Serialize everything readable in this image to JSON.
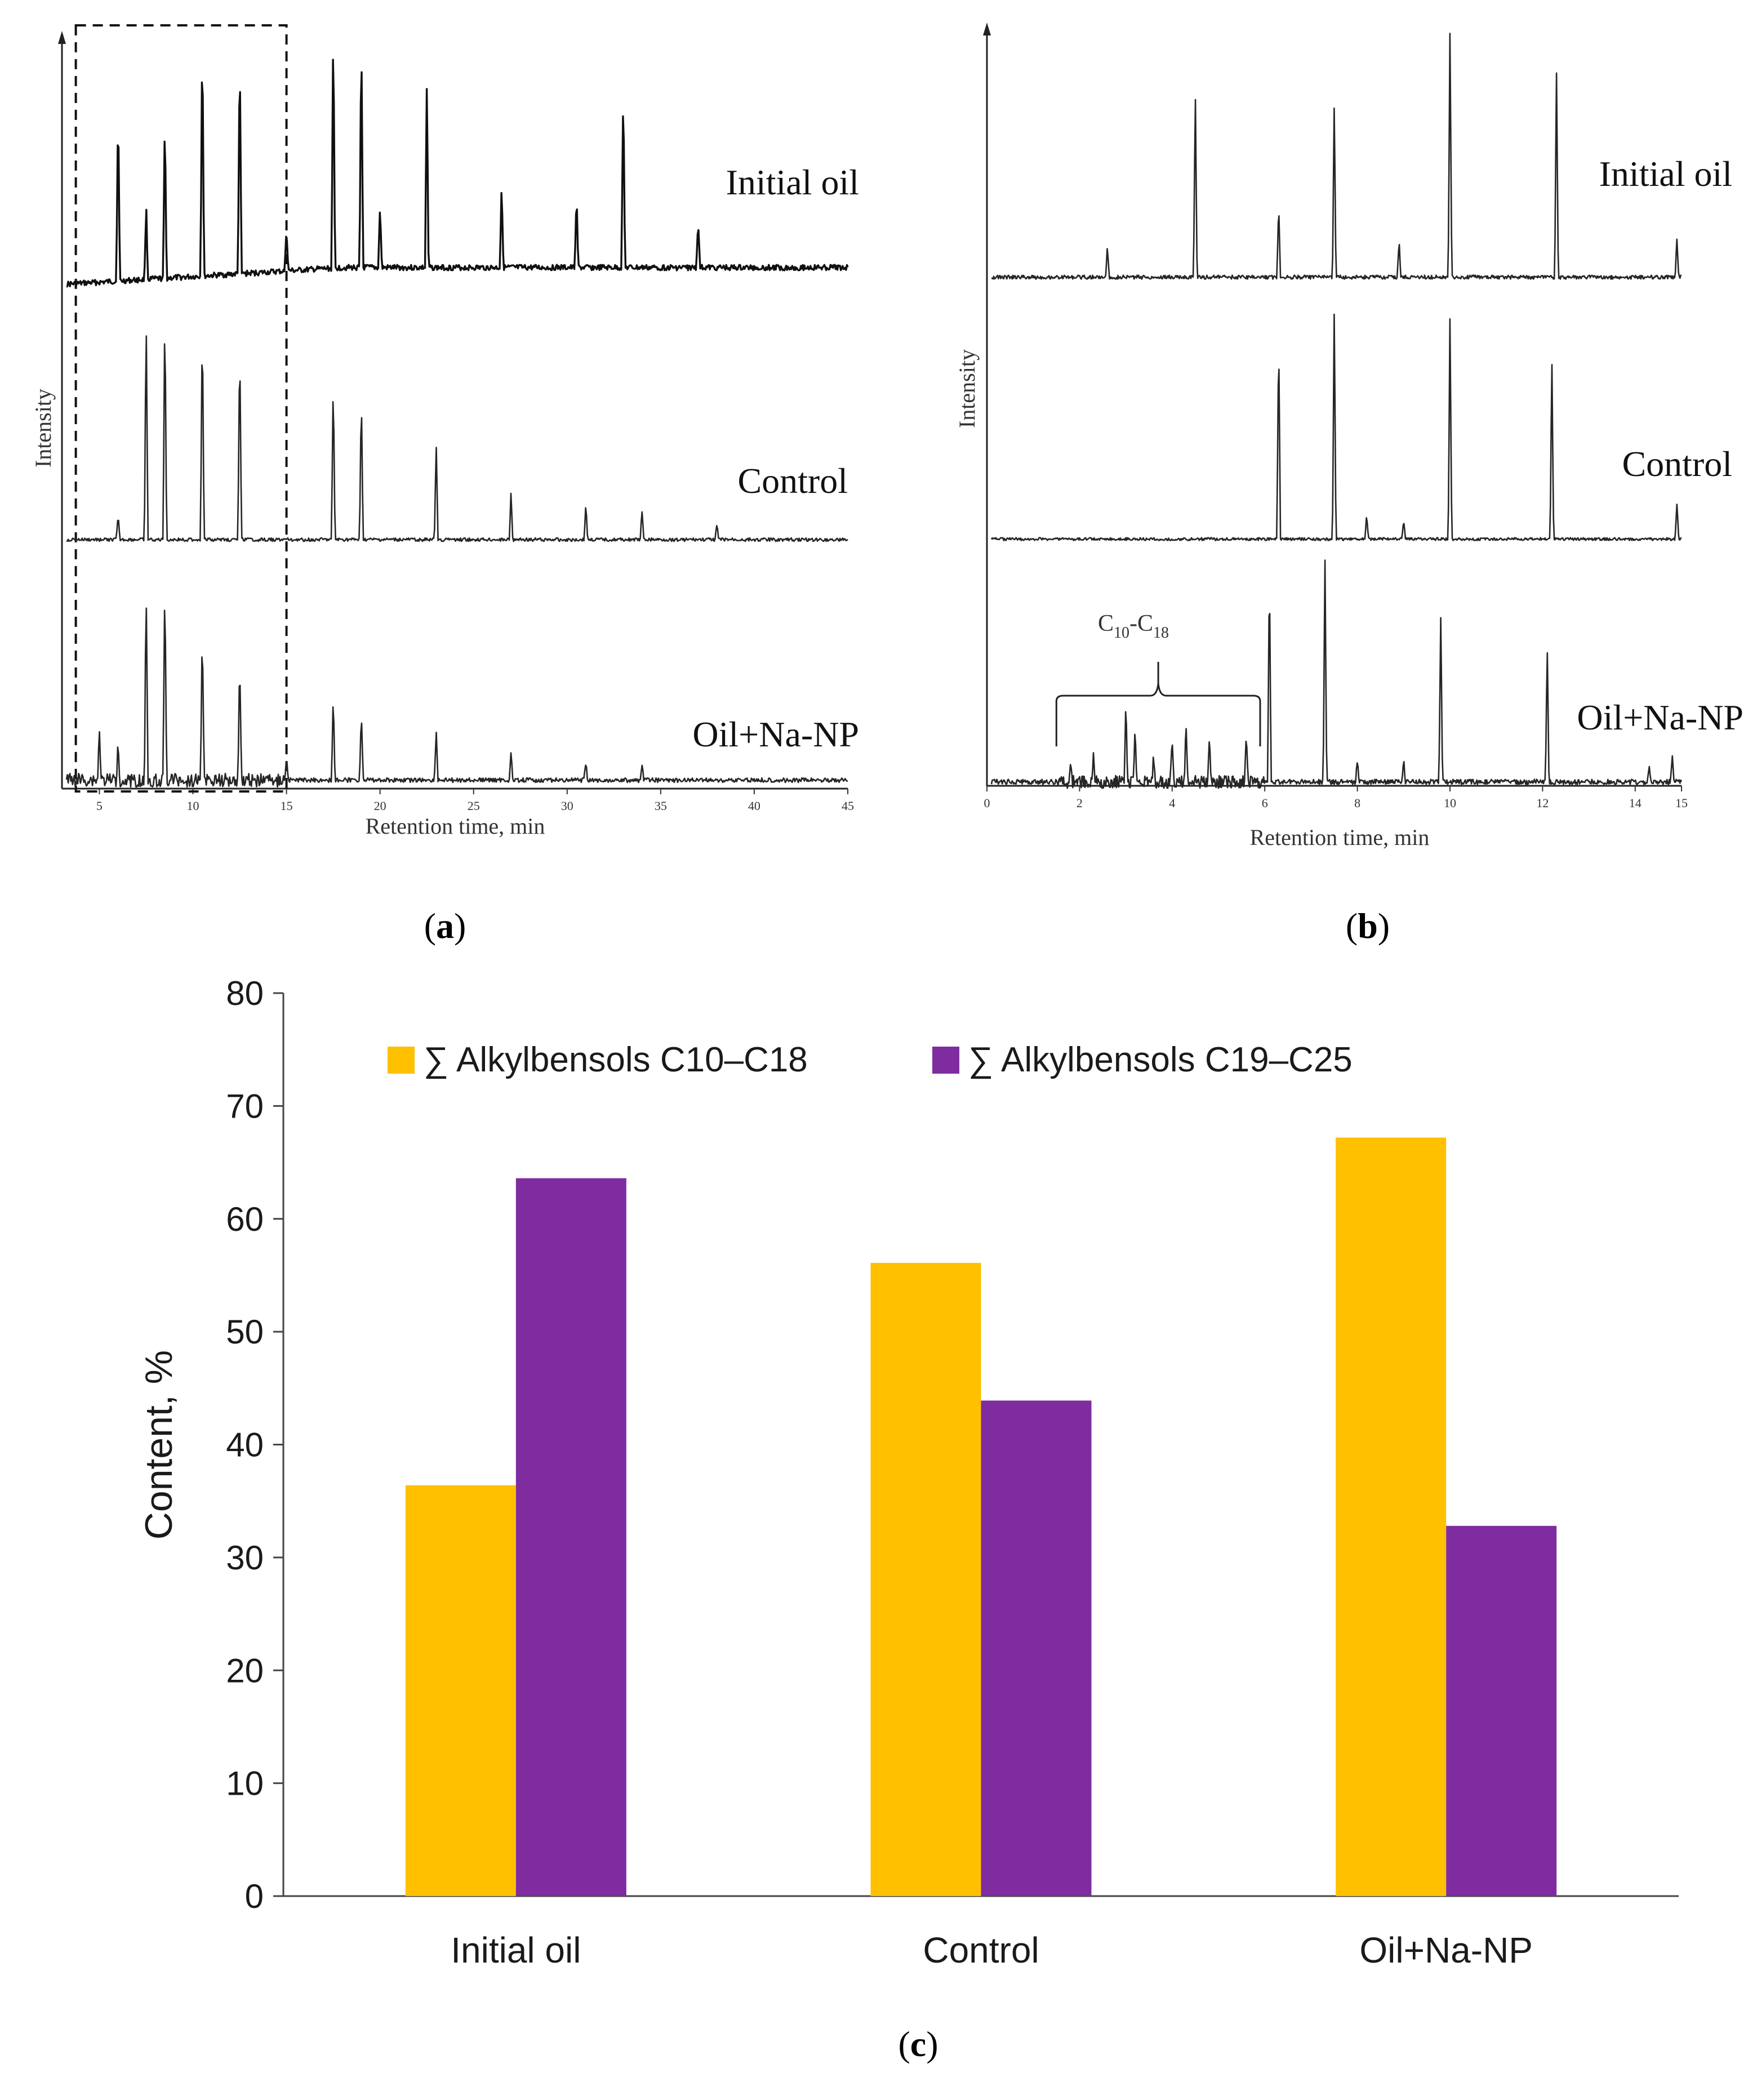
{
  "figure_panels": {
    "a": {
      "open": "(",
      "letter": "a",
      "close": ")"
    },
    "b": {
      "open": "(",
      "letter": "b",
      "close": ")"
    },
    "c": {
      "open": "(",
      "letter": "c",
      "close": ")"
    }
  },
  "chromatograms": {
    "a": {
      "xlabel": "Retention time, min",
      "ylabel": "Intensity",
      "xlim": [
        3,
        45
      ],
      "xticks": [
        "5",
        "10",
        "15",
        "20",
        "25",
        "30",
        "35",
        "40",
        "45"
      ],
      "highlight_window": [
        3.5,
        15
      ],
      "traces": [
        {
          "name": "Initial oil",
          "peaks": [
            [
              6,
              0.72
            ],
            [
              7.5,
              0.3
            ],
            [
              8.5,
              0.65
            ],
            [
              10.5,
              1.0
            ],
            [
              12.5,
              0.92
            ],
            [
              15,
              0.18
            ],
            [
              17.5,
              0.98
            ],
            [
              19,
              0.95
            ],
            [
              20,
              0.25
            ],
            [
              22.5,
              0.75
            ],
            [
              26.5,
              0.35
            ],
            [
              30.5,
              0.3
            ],
            [
              33,
              0.75
            ],
            [
              37,
              0.2
            ]
          ]
        },
        {
          "name": "Control",
          "peaks": [
            [
              6,
              0.1
            ],
            [
              7.5,
              0.95
            ],
            [
              8.5,
              1.0
            ],
            [
              10.5,
              0.95
            ],
            [
              12.5,
              0.85
            ],
            [
              17.5,
              0.68
            ],
            [
              19,
              0.62
            ],
            [
              23,
              0.42
            ],
            [
              27,
              0.2
            ],
            [
              31,
              0.15
            ],
            [
              34,
              0.12
            ],
            [
              38,
              0.07
            ]
          ]
        },
        {
          "name": "Oil+Na-NP",
          "peaks": [
            [
              5,
              0.25
            ],
            [
              6,
              0.2
            ],
            [
              7.5,
              0.95
            ],
            [
              8.5,
              1.0
            ],
            [
              10.5,
              0.78
            ],
            [
              12.5,
              0.6
            ],
            [
              15,
              0.12
            ],
            [
              17.5,
              0.42
            ],
            [
              19,
              0.35
            ],
            [
              23,
              0.25
            ],
            [
              27,
              0.13
            ],
            [
              31,
              0.09
            ],
            [
              34,
              0.08
            ]
          ]
        }
      ]
    },
    "b": {
      "xlabel": "Retention time, min",
      "ylabel": "Intensity",
      "xlim": [
        0,
        15
      ],
      "xticks": [
        "0",
        "2",
        "4",
        "6",
        "8",
        "10",
        "12",
        "14",
        "15"
      ],
      "bracket_label": {
        "main": "C",
        "sub1": "10",
        "dash": "-C",
        "sub2": "18"
      },
      "bracket_range": [
        1.5,
        5.9
      ],
      "traces": [
        {
          "name": "Initial oil",
          "peaks": [
            [
              2.6,
              0.12
            ],
            [
              4.5,
              0.75
            ],
            [
              6.3,
              0.3
            ],
            [
              7.5,
              0.7
            ],
            [
              8.9,
              0.15
            ],
            [
              10,
              1.0
            ],
            [
              12.3,
              0.85
            ],
            [
              14.9,
              0.15
            ]
          ]
        },
        {
          "name": "Control",
          "peaks": [
            [
              6.3,
              0.85
            ],
            [
              7.5,
              0.95
            ],
            [
              8.2,
              0.1
            ],
            [
              9,
              0.08
            ],
            [
              10,
              0.92
            ],
            [
              12.2,
              0.75
            ],
            [
              14.9,
              0.15
            ]
          ]
        },
        {
          "name": "Oil+Na-NP",
          "peaks": [
            [
              1.8,
              0.1
            ],
            [
              2.3,
              0.12
            ],
            [
              3,
              0.35
            ],
            [
              3.2,
              0.25
            ],
            [
              3.6,
              0.12
            ],
            [
              4,
              0.2
            ],
            [
              4.3,
              0.25
            ],
            [
              4.8,
              0.2
            ],
            [
              5.6,
              0.18
            ],
            [
              6.1,
              0.95
            ],
            [
              7.3,
              1.0
            ],
            [
              8,
              0.1
            ],
            [
              9,
              0.1
            ],
            [
              9.8,
              0.75
            ],
            [
              12.1,
              0.6
            ],
            [
              14.3,
              0.08
            ],
            [
              14.8,
              0.12
            ]
          ]
        }
      ]
    }
  },
  "chart_data": {
    "type": "bar",
    "title": "",
    "categories": [
      "Initial oil",
      "Control",
      "Oil+Na-NP"
    ],
    "series": [
      {
        "name": "∑ Alkylbensols C10–C18",
        "color": "#FFC000",
        "values": [
          36.4,
          56.1,
          67.2
        ]
      },
      {
        "name": "∑ Alkylbensols C19–C25",
        "color": "#7F2CA0",
        "values": [
          63.6,
          43.9,
          32.8
        ]
      }
    ],
    "xlabel": "",
    "ylabel": "Content, %",
    "ylim": [
      0,
      80
    ],
    "yticks": [
      "0",
      "10",
      "20",
      "30",
      "40",
      "50",
      "60",
      "70",
      "80"
    ],
    "legend_position": "top"
  }
}
